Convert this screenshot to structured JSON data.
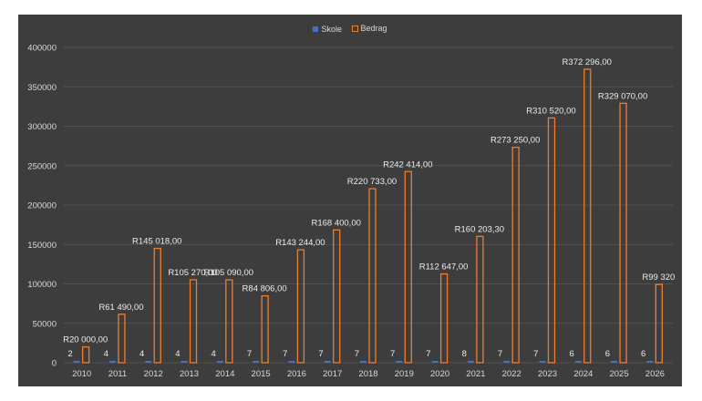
{
  "chart_data": {
    "type": "bar",
    "title": "",
    "xlabel": "",
    "ylabel": "",
    "ylim": [
      0,
      400000
    ],
    "yticks": [
      "400000",
      "350000",
      "300000",
      "250000",
      "200000",
      "150000",
      "100000",
      "50000",
      "0"
    ],
    "categories": [
      "2010",
      "2011",
      "2012",
      "2013",
      "2014",
      "2015",
      "2016",
      "2017",
      "2018",
      "2019",
      "2020",
      "2021",
      "2022",
      "2023",
      "2024",
      "2025",
      "2026"
    ],
    "legend_position": "top-center",
    "grid": true,
    "series": [
      {
        "name": "Skole",
        "color": "#4472c4",
        "values": [
          2,
          4,
          4,
          4,
          4,
          7,
          7,
          7,
          7,
          7,
          7,
          8,
          7,
          7,
          6,
          6,
          6
        ],
        "labels": [
          "2",
          "4",
          "4",
          "4",
          "4",
          "7",
          "7",
          "7",
          "7",
          "7",
          "7",
          "8",
          "7",
          "7",
          "6",
          "6",
          "6"
        ]
      },
      {
        "name": "Bedrag",
        "color": "#ed7d31",
        "values": [
          20000,
          61490,
          145018,
          105270,
          105090,
          84806,
          143244,
          168400,
          220733,
          242414,
          112647,
          160203.3,
          273250,
          310520,
          372296,
          329070,
          99320
        ],
        "labels": [
          "R20 000,00",
          "R61 490,00",
          "R145 018,00",
          "R105 270,00",
          "R105 090,00",
          "R84 806,00",
          "R143 244,00",
          "R168 400,00",
          "R220 733,00",
          "R242 414,00",
          "R112 647,00",
          "R160 203,30",
          "R273 250,00",
          "R310 520,00",
          "R372 296,00",
          "R329 070,00",
          "R99 320"
        ]
      }
    ]
  }
}
